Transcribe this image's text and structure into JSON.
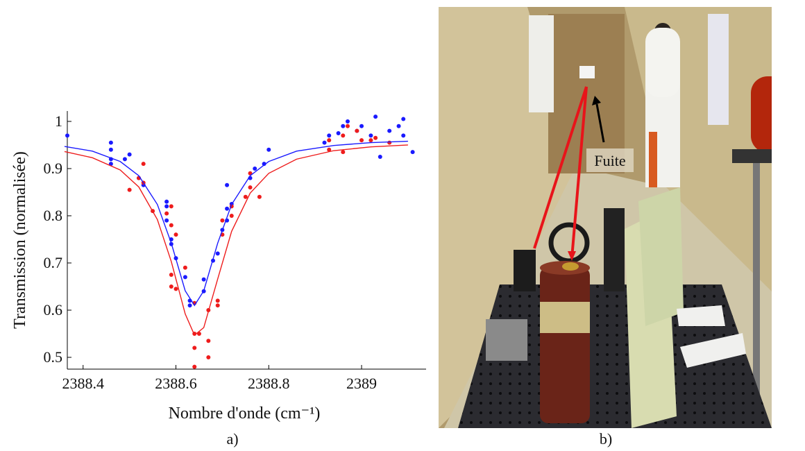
{
  "chart_data": {
    "type": "scatter",
    "xlabel": "Nombre d'onde (cm⁻¹)",
    "ylabel": "Transmission (normalisée)",
    "xlim": [
      2388.366,
      2389.139
    ],
    "ylim": [
      0.475,
      1.022
    ],
    "xticks": [
      2388.4,
      2388.6,
      2388.8,
      2389
    ],
    "yticks": [
      0.5,
      0.6,
      0.7,
      0.8,
      0.9,
      1
    ],
    "series": [
      {
        "style": "markers",
        "color": "#1a1aff",
        "x": [
          2388.366,
          2388.46,
          2388.46,
          2388.46,
          2388.46,
          2388.49,
          2388.5,
          2388.52,
          2388.53,
          2388.58,
          2388.58,
          2388.58,
          2388.59,
          2388.59,
          2388.6,
          2388.62,
          2388.63,
          2388.63,
          2388.66,
          2388.66,
          2388.68,
          2388.69,
          2388.7,
          2388.71,
          2388.71,
          2388.72,
          2388.71,
          2388.76,
          2388.77,
          2388.79,
          2388.8,
          2388.92,
          2388.93,
          2388.95,
          2388.96,
          2388.97,
          2388.99,
          2389.0,
          2389.02,
          2389.03,
          2389.04,
          2389.06,
          2389.08,
          2389.09,
          2389.09,
          2389.11
        ],
        "values": [
          0.97,
          0.955,
          0.94,
          0.92,
          0.91,
          0.92,
          0.93,
          0.88,
          0.865,
          0.83,
          0.82,
          0.79,
          0.75,
          0.74,
          0.71,
          0.67,
          0.62,
          0.61,
          0.64,
          0.665,
          0.705,
          0.72,
          0.77,
          0.79,
          0.815,
          0.825,
          0.865,
          0.88,
          0.9,
          0.91,
          0.94,
          0.955,
          0.97,
          0.975,
          0.99,
          1.0,
          0.98,
          0.99,
          0.97,
          1.01,
          0.925,
          0.98,
          0.99,
          1.005,
          0.97,
          0.935
        ]
      },
      {
        "style": "markers",
        "color": "#ee1c1c",
        "x": [
          2388.53,
          2388.52,
          2388.53,
          2388.5,
          2388.55,
          2388.58,
          2388.59,
          2388.59,
          2388.6,
          2388.59,
          2388.6,
          2388.59,
          2388.62,
          2388.64,
          2388.64,
          2388.64,
          2388.64,
          2388.65,
          2388.67,
          2388.67,
          2388.67,
          2388.69,
          2388.69,
          2388.7,
          2388.7,
          2388.72,
          2388.72,
          2388.75,
          2388.76,
          2388.76,
          2388.78,
          2388.93,
          2388.93,
          2388.96,
          2388.96,
          2388.97,
          2388.99,
          2389.0,
          2389.02,
          2389.03,
          2389.06
        ],
        "values": [
          0.91,
          0.88,
          0.87,
          0.855,
          0.81,
          0.805,
          0.82,
          0.78,
          0.76,
          0.65,
          0.645,
          0.675,
          0.69,
          0.615,
          0.55,
          0.52,
          0.48,
          0.55,
          0.6,
          0.535,
          0.5,
          0.62,
          0.61,
          0.76,
          0.79,
          0.8,
          0.82,
          0.84,
          0.86,
          0.89,
          0.84,
          0.96,
          0.94,
          0.97,
          0.935,
          0.99,
          0.98,
          0.96,
          0.96,
          0.965,
          0.955
        ]
      },
      {
        "style": "line",
        "color": "#1a1aff",
        "x": [
          2388.36,
          2388.42,
          2388.48,
          2388.52,
          2388.56,
          2388.59,
          2388.62,
          2388.64,
          2388.66,
          2388.69,
          2388.72,
          2388.76,
          2388.8,
          2388.86,
          2388.94,
          2389.02,
          2389.1
        ],
        "values": [
          0.947,
          0.937,
          0.915,
          0.885,
          0.824,
          0.742,
          0.641,
          0.61,
          0.641,
          0.742,
          0.824,
          0.885,
          0.915,
          0.937,
          0.949,
          0.955,
          0.958
        ]
      },
      {
        "style": "line",
        "color": "#ee1c1c",
        "x": [
          2388.36,
          2388.42,
          2388.48,
          2388.52,
          2388.56,
          2388.59,
          2388.62,
          2388.64,
          2388.66,
          2388.69,
          2388.72,
          2388.76,
          2388.8,
          2388.86,
          2388.94,
          2389.02,
          2389.1
        ],
        "values": [
          0.936,
          0.923,
          0.897,
          0.861,
          0.792,
          0.703,
          0.592,
          0.547,
          0.563,
          0.666,
          0.767,
          0.848,
          0.89,
          0.92,
          0.938,
          0.946,
          0.95
        ]
      }
    ]
  },
  "panels": [
    {
      "label": "a)"
    },
    {
      "label": "b)",
      "annotation": "Fuite"
    }
  ]
}
